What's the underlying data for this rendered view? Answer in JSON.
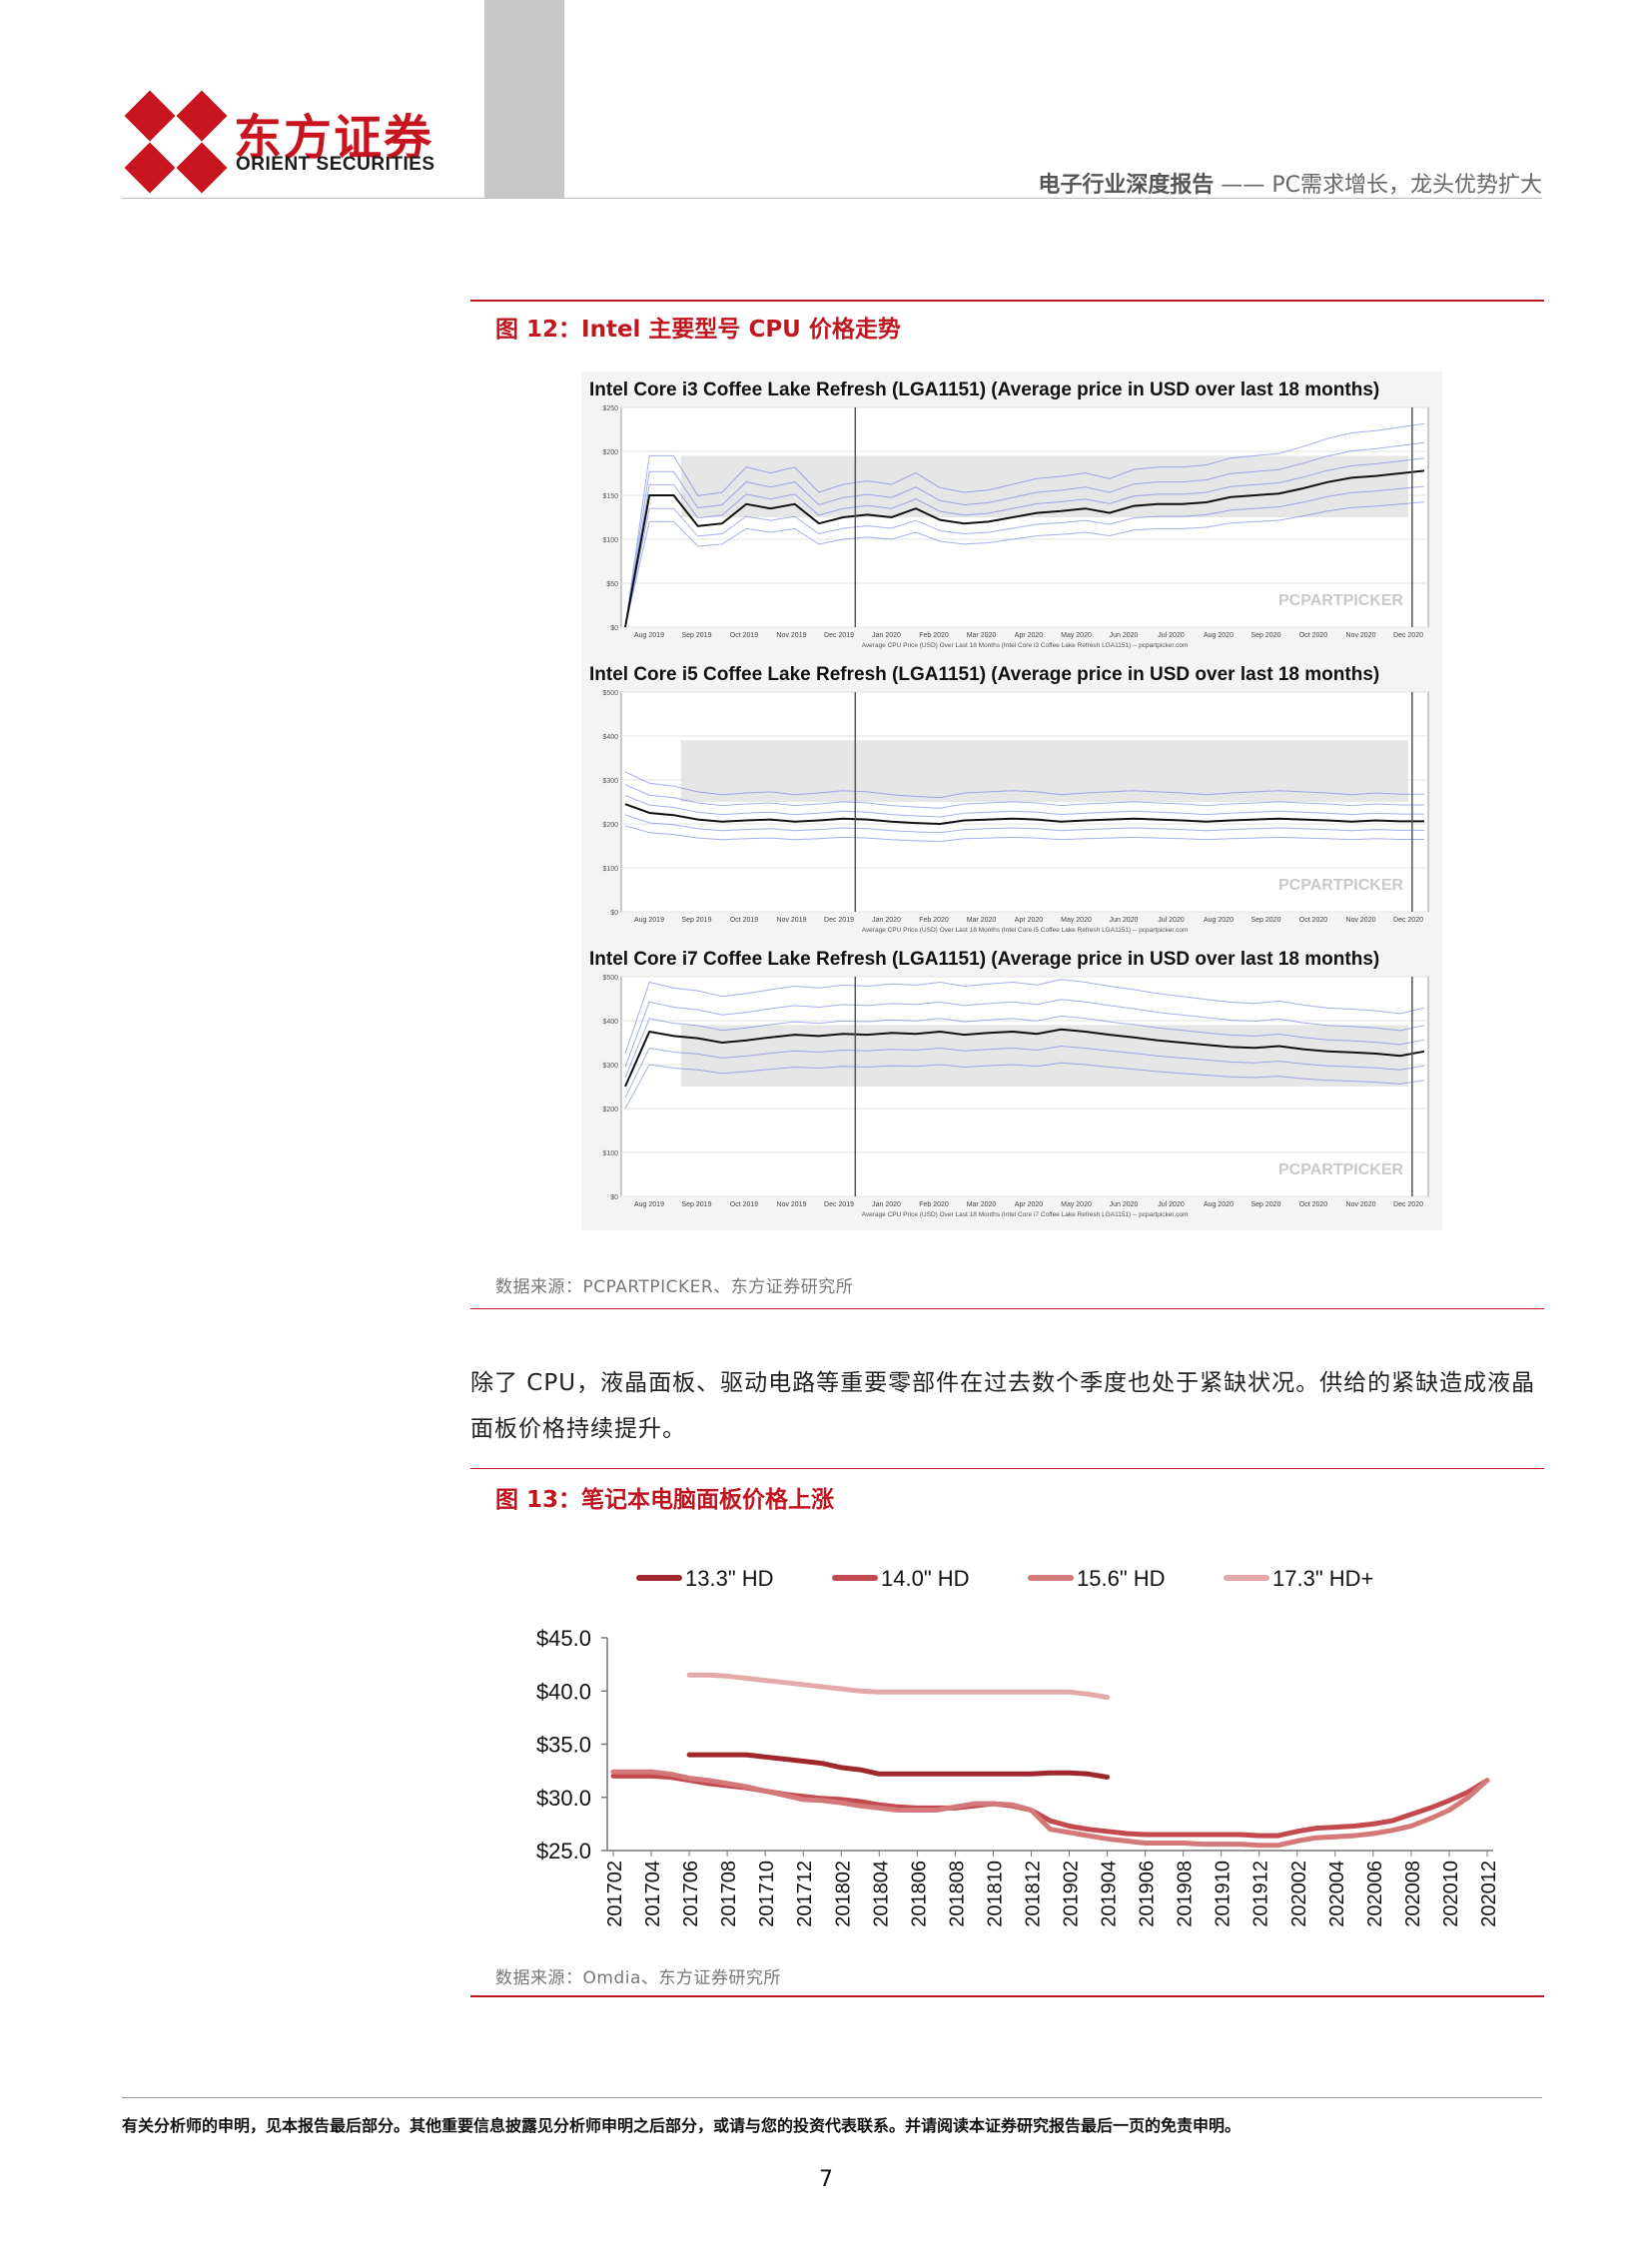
{
  "header": {
    "logo_cn": "东方证券",
    "logo_en": "ORIENT SECURITIES",
    "report_type": "电子行业深度报告",
    "dash": "——",
    "report_title": "PC需求增长，龙头优势扩大",
    "colors": {
      "brand_red": "#c8141e",
      "accent_red": "#c0161f"
    }
  },
  "figure12": {
    "caption": "图 12：Intel 主要型号 CPU 价格走势",
    "source": "数据来源：PCPARTPICKER、东方证券研究所",
    "watermark": "PCPARTPICKER",
    "months": [
      "Aug 2019",
      "Sep 2019",
      "Oct 2019",
      "Nov 2019",
      "Dec 2019",
      "Jan 2020",
      "Feb 2020",
      "Mar 2020",
      "Apr 2020",
      "May 2020",
      "Jun 2020",
      "Jul 2020",
      "Aug 2020",
      "Sep 2020",
      "Oct 2020",
      "Nov 2020",
      "Dec 2020"
    ],
    "panels": [
      {
        "title": "Intel Core i3 Coffee Lake Refresh (LGA1151) (Average price in USD over last 18 months)",
        "yticks": [
          "$250",
          "$200",
          "$150",
          "$100",
          "$50",
          "$0"
        ],
        "ymax": 250,
        "footer": "Average CPU Price (USD) Over Last 18 Months (Intel Core i3 Coffee Lake Refresh LGA1151) -- pcpartpicker.com",
        "avg_price": [
          0,
          150,
          150,
          115,
          118,
          140,
          135,
          140,
          118,
          125,
          128,
          125,
          135,
          122,
          118,
          120,
          125,
          130,
          132,
          135,
          130,
          138,
          140,
          140,
          142,
          148,
          150,
          152,
          158,
          165,
          170,
          172,
          175,
          178
        ]
      },
      {
        "title": "Intel Core i5 Coffee Lake Refresh (LGA1151) (Average price in USD over last 18 months)",
        "yticks": [
          "$500",
          "$400",
          "$300",
          "$200",
          "$100",
          "$0"
        ],
        "ymax": 500,
        "footer": "Average CPU Price (USD) Over Last 18 Months (Intel Core i5 Coffee Lake Refresh LGA1151) -- pcpartpicker.com",
        "avg_price": [
          245,
          225,
          220,
          210,
          205,
          208,
          210,
          205,
          208,
          212,
          210,
          205,
          202,
          200,
          208,
          210,
          212,
          210,
          205,
          208,
          210,
          212,
          210,
          208,
          205,
          208,
          210,
          212,
          210,
          208,
          205,
          208,
          206,
          206
        ]
      },
      {
        "title": "Intel Core i7 Coffee Lake Refresh (LGA1151) (Average price in USD over last 18 months)",
        "yticks": [
          "$500",
          "$400",
          "$300",
          "$200",
          "$100",
          "$0"
        ],
        "ymax": 500,
        "footer": "Average CPU Price (USD) Over Last 18 Months (Intel Core i7 Coffee Lake Refresh LGA1151) -- pcpartpicker.com",
        "avg_price": [
          250,
          375,
          365,
          360,
          350,
          355,
          362,
          368,
          365,
          370,
          368,
          372,
          370,
          375,
          368,
          372,
          375,
          370,
          380,
          375,
          368,
          362,
          355,
          350,
          345,
          340,
          338,
          342,
          335,
          330,
          328,
          325,
          320,
          330
        ]
      }
    ]
  },
  "paragraph": "除了 CPU，液晶面板、驱动电路等重要零部件在过去数个季度也处于紧缺状况。供给的紧缺造成液晶面板价格持续提升。",
  "figure13": {
    "caption": "图 13：笔记本电脑面板价格上涨",
    "source": "数据来源：Omdia、东方证券研究所"
  },
  "chart_data": {
    "type": "line",
    "x": [
      "201702",
      "201703",
      "201704",
      "201705",
      "201706",
      "201707",
      "201708",
      "201709",
      "201710",
      "201711",
      "201712",
      "201801",
      "201802",
      "201803",
      "201804",
      "201805",
      "201806",
      "201807",
      "201808",
      "201809",
      "201810",
      "201811",
      "201812",
      "201901",
      "201902",
      "201903",
      "201904",
      "201905",
      "201906",
      "201907",
      "201908",
      "201909",
      "201910",
      "201911",
      "201912",
      "202001",
      "202002",
      "202003",
      "202004",
      "202005",
      "202006",
      "202007",
      "202008",
      "202009",
      "202010",
      "202011",
      "202012"
    ],
    "xtick_labels": [
      "201702",
      "201704",
      "201706",
      "201708",
      "201710",
      "201712",
      "201802",
      "201804",
      "201806",
      "201808",
      "201810",
      "201812",
      "201902",
      "201904",
      "201906",
      "201908",
      "201910",
      "201912",
      "202002",
      "202004",
      "202006",
      "202008",
      "202010",
      "202012"
    ],
    "yticks": [
      "$25.0",
      "$30.0",
      "$35.0",
      "$40.0",
      "$45.0"
    ],
    "ylim": [
      25,
      45
    ],
    "legend_position": "top",
    "series": [
      {
        "name": "13.3\" HD",
        "color": "#a0282d",
        "values": [
          null,
          null,
          null,
          null,
          34.0,
          34.0,
          34.0,
          34.0,
          33.8,
          33.6,
          33.4,
          33.2,
          32.8,
          32.6,
          32.2,
          32.2,
          32.2,
          32.2,
          32.2,
          32.2,
          32.2,
          32.2,
          32.2,
          32.3,
          32.3,
          32.2,
          31.9,
          null,
          null,
          null,
          null,
          null,
          null,
          null,
          null,
          null,
          null,
          null,
          null,
          null,
          null,
          null,
          null,
          null,
          null,
          null,
          null
        ]
      },
      {
        "name": "14.0\" HD",
        "color": "#c24a4e",
        "values": [
          32.0,
          32.0,
          32.0,
          31.9,
          31.6,
          31.3,
          31.1,
          30.9,
          30.6,
          30.3,
          30.1,
          29.9,
          29.8,
          29.6,
          29.3,
          29.1,
          29.0,
          29.0,
          29.0,
          29.2,
          29.4,
          29.2,
          28.8,
          27.8,
          27.3,
          27.0,
          26.8,
          26.6,
          26.5,
          26.5,
          26.5,
          26.5,
          26.5,
          26.5,
          26.4,
          26.4,
          26.8,
          27.1,
          27.2,
          27.3,
          27.5,
          27.8,
          28.4,
          29.0,
          29.7,
          30.5,
          31.6
        ]
      },
      {
        "name": "15.6\" HD",
        "color": "#d4787a",
        "values": [
          32.4,
          32.4,
          32.4,
          32.2,
          31.8,
          31.6,
          31.3,
          31.0,
          30.6,
          30.2,
          29.8,
          29.7,
          29.5,
          29.2,
          29.0,
          28.8,
          28.8,
          28.8,
          29.1,
          29.4,
          29.4,
          29.3,
          28.8,
          27.0,
          26.7,
          26.4,
          26.1,
          25.9,
          25.7,
          25.7,
          25.7,
          25.6,
          25.6,
          25.6,
          25.5,
          25.5,
          25.9,
          26.2,
          26.3,
          26.4,
          26.6,
          26.9,
          27.3,
          28.0,
          28.8,
          30.0,
          31.6
        ]
      },
      {
        "name": "17.3\" HD+",
        "color": "#e4aaaa",
        "values": [
          null,
          null,
          null,
          null,
          41.5,
          41.5,
          41.4,
          41.2,
          41.0,
          40.8,
          40.6,
          40.4,
          40.2,
          40.0,
          39.9,
          39.9,
          39.9,
          39.9,
          39.9,
          39.9,
          39.9,
          39.9,
          39.9,
          39.9,
          39.9,
          39.7,
          39.4,
          null,
          null,
          null,
          null,
          null,
          null,
          null,
          null,
          null,
          null,
          null,
          null,
          null,
          null,
          null,
          null,
          null,
          null,
          null,
          null
        ]
      }
    ]
  },
  "footer": {
    "disclaimer": "有关分析师的申明，见本报告最后部分。其他重要信息披露见分析师申明之后部分，或请与您的投资代表联系。并请阅读本证券研究报告最后一页的免责申明。",
    "page": "7"
  }
}
